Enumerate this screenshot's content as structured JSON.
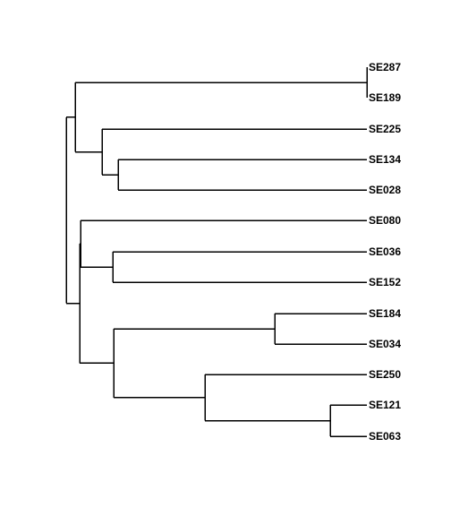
{
  "tree": {
    "type": "dendrogram",
    "orientation": "left-to-right",
    "line_color": "#000000",
    "label_color": "#000000",
    "leaves": [
      "SE287",
      "SE189",
      "SE225",
      "SE134",
      "SE028",
      "SE080",
      "SE036",
      "SE152",
      "SE184",
      "SE034",
      "SE250",
      "SE121",
      "SE063"
    ]
  }
}
